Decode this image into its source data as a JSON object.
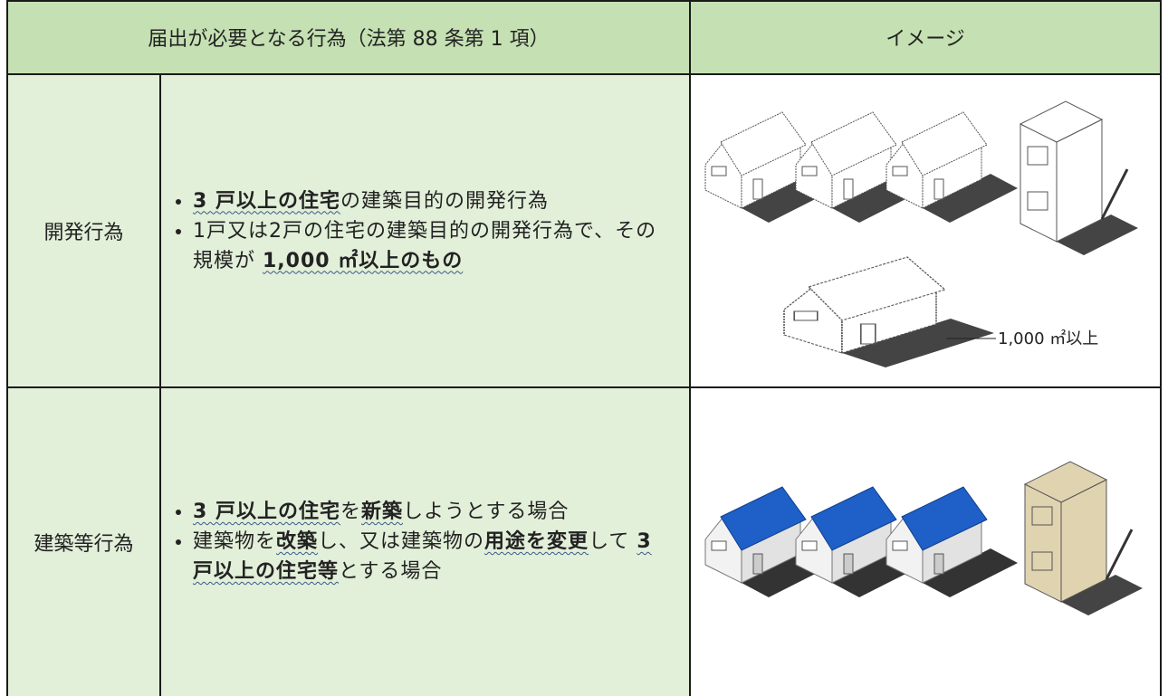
{
  "header": {
    "cells": [
      "届出が必要となる行為（法第 88 条第 1 項）",
      "イメージ"
    ]
  },
  "rows": [
    {
      "label": "開発行為",
      "bullets": [
        [
          {
            "text": "3 戸以上の住宅",
            "emphasis": true
          },
          {
            "text": "の建築目的の開発行為",
            "emphasis": false
          }
        ],
        [
          {
            "text": "1戸又は2戸の住宅の建築目的の開発行為で、その規模が ",
            "emphasis": false
          },
          {
            "text": "1,000 ㎡以上のもの",
            "emphasis": true
          }
        ]
      ],
      "image_caption": "1,000 ㎡以上"
    },
    {
      "label": "建築等行為",
      "bullets": [
        [
          {
            "text": "3 戸以上の住宅",
            "emphasis": true
          },
          {
            "text": "を",
            "emphasis": false
          },
          {
            "text": "新築",
            "emphasis": true
          },
          {
            "text": "しようとする場合",
            "emphasis": false
          }
        ],
        [
          {
            "text": "建築物を",
            "emphasis": false
          },
          {
            "text": "改築",
            "emphasis": true
          },
          {
            "text": "し、又は建築物の",
            "emphasis": false
          },
          {
            "text": "用途を変更",
            "emphasis": true
          },
          {
            "text": "して ",
            "emphasis": false
          },
          {
            "text": "3 戸以上の住宅等",
            "emphasis": true
          },
          {
            "text": "とする場合",
            "emphasis": false
          }
        ]
      ]
    }
  ]
}
